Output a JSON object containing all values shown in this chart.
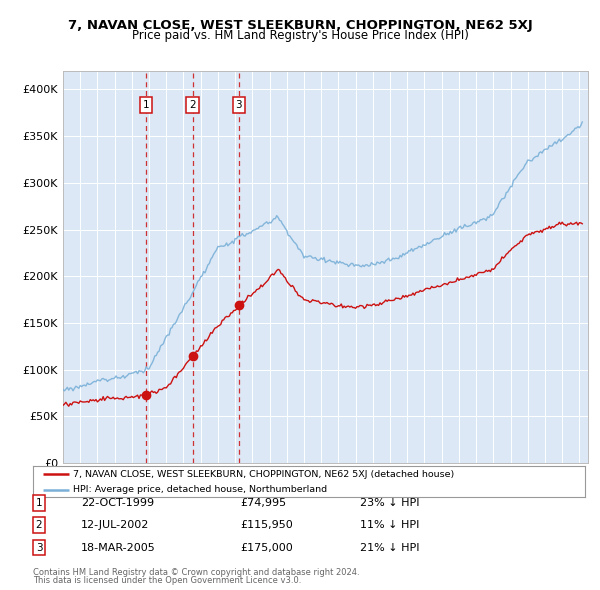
{
  "title": "7, NAVAN CLOSE, WEST SLEEKBURN, CHOPPINGTON, NE62 5XJ",
  "subtitle": "Price paid vs. HM Land Registry's House Price Index (HPI)",
  "background_color": "#ffffff",
  "plot_bg_color": "#dce8f5",
  "ylim": [
    0,
    420000
  ],
  "yticks": [
    0,
    50000,
    100000,
    150000,
    200000,
    250000,
    300000,
    350000,
    400000
  ],
  "ytick_labels": [
    "£0",
    "£50K",
    "£100K",
    "£150K",
    "£200K",
    "£250K",
    "£300K",
    "£350K",
    "£400K"
  ],
  "hpi_color": "#7ab0d8",
  "price_color": "#cc1111",
  "vline_color": "#cc1111",
  "transactions": [
    {
      "num": 1,
      "date": "22-OCT-1999",
      "price_str": "£74,995",
      "price": 74995,
      "note": "23% ↓ HPI",
      "x_year": 1999.81
    },
    {
      "num": 2,
      "date": "12-JUL-2002",
      "price_str": "£115,950",
      "price": 115950,
      "note": "11% ↓ HPI",
      "x_year": 2002.53
    },
    {
      "num": 3,
      "date": "18-MAR-2005",
      "price_str": "£175,000",
      "price": 175000,
      "note": "21% ↓ HPI",
      "x_year": 2005.21
    }
  ],
  "legend_line1": "7, NAVAN CLOSE, WEST SLEEKBURN, CHOPPINGTON, NE62 5XJ (detached house)",
  "legend_line2": "HPI: Average price, detached house, Northumberland",
  "footer_line1": "Contains HM Land Registry data © Crown copyright and database right 2024.",
  "footer_line2": "This data is licensed under the Open Government Licence v3.0.",
  "xmin": 1995.0,
  "xmax": 2025.5
}
